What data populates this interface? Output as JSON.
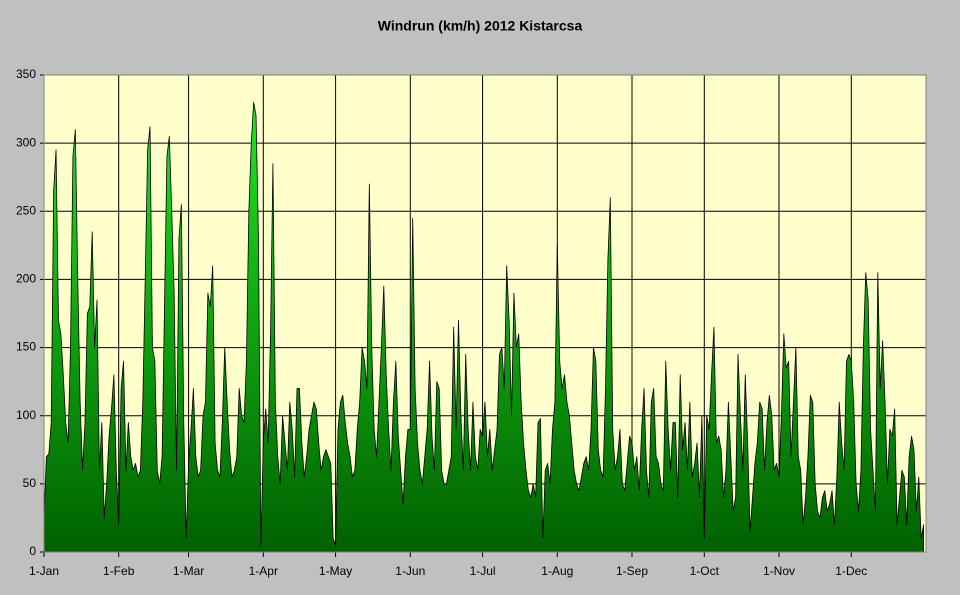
{
  "chart_data": {
    "type": "area",
    "title": "Windrun (km/h) 2012 Kistarcsa",
    "categories": [
      "1-Jan",
      null,
      null,
      null,
      null,
      null,
      null,
      null,
      null,
      null,
      null,
      null,
      null,
      null,
      null,
      null,
      null,
      null,
      null,
      null,
      null,
      null,
      null,
      null,
      null,
      null,
      null,
      null,
      null,
      null,
      null,
      "1-Feb",
      null,
      null,
      null,
      null,
      null,
      null,
      null,
      null,
      null,
      null,
      null,
      null,
      null,
      null,
      null,
      null,
      null,
      null,
      null,
      null,
      null,
      null,
      null,
      null,
      null,
      null,
      null,
      null,
      "1-Mar",
      null,
      null,
      null,
      null,
      null,
      null,
      null,
      null,
      null,
      null,
      null,
      null,
      null,
      null,
      null,
      null,
      null,
      null,
      null,
      null,
      null,
      null,
      null,
      null,
      null,
      null,
      null,
      null,
      null,
      null,
      "1-Apr",
      null,
      null,
      null,
      null,
      null,
      null,
      null,
      null,
      null,
      null,
      null,
      null,
      null,
      null,
      null,
      null,
      null,
      null,
      null,
      null,
      null,
      null,
      null,
      null,
      null,
      null,
      null,
      null,
      null,
      "1-May",
      null,
      null,
      null,
      null,
      null,
      null,
      null,
      null,
      null,
      null,
      null,
      null,
      null,
      null,
      null,
      null,
      null,
      null,
      null,
      null,
      null,
      null,
      null,
      null,
      null,
      null,
      null,
      null,
      null,
      null,
      "1-Jun",
      null,
      null,
      null,
      null,
      null,
      null,
      null,
      null,
      null,
      null,
      null,
      null,
      null,
      null,
      null,
      null,
      null,
      null,
      null,
      null,
      null,
      null,
      null,
      null,
      null,
      null,
      null,
      null,
      null,
      "1-Jul",
      null,
      null,
      null,
      null,
      null,
      null,
      null,
      null,
      null,
      null,
      null,
      null,
      null,
      null,
      null,
      null,
      null,
      null,
      null,
      null,
      null,
      null,
      null,
      null,
      null,
      null,
      null,
      null,
      null,
      null,
      "1-Aug",
      null,
      null,
      null,
      null,
      null,
      null,
      null,
      null,
      null,
      null,
      null,
      null,
      null,
      null,
      null,
      null,
      null,
      null,
      null,
      null,
      null,
      null,
      null,
      null,
      null,
      null,
      null,
      null,
      null,
      null,
      "1-Sep",
      null,
      null,
      null,
      null,
      null,
      null,
      null,
      null,
      null,
      null,
      null,
      null,
      null,
      null,
      null,
      null,
      null,
      null,
      null,
      null,
      null,
      null,
      null,
      null,
      null,
      null,
      null,
      null,
      null,
      "1-Oct",
      null,
      null,
      null,
      null,
      null,
      null,
      null,
      null,
      null,
      null,
      null,
      null,
      null,
      null,
      null,
      null,
      null,
      null,
      null,
      null,
      null,
      null,
      null,
      null,
      null,
      null,
      null,
      null,
      null,
      null,
      "1-Nov",
      null,
      null,
      null,
      null,
      null,
      null,
      null,
      null,
      null,
      null,
      null,
      null,
      null,
      null,
      null,
      null,
      null,
      null,
      null,
      null,
      null,
      null,
      null,
      null,
      null,
      null,
      null,
      null,
      null,
      "1-Dec",
      null,
      null,
      null,
      null,
      null,
      null,
      null,
      null,
      null,
      null,
      null,
      null,
      null,
      null,
      null,
      null,
      null,
      null,
      null,
      null,
      null,
      null,
      null,
      null,
      null,
      null,
      null,
      null,
      null,
      null
    ],
    "values": [
      25,
      70,
      72,
      95,
      265,
      295,
      170,
      160,
      130,
      95,
      80,
      150,
      290,
      310,
      200,
      110,
      60,
      95,
      175,
      180,
      235,
      150,
      185,
      60,
      95,
      25,
      50,
      85,
      105,
      130,
      60,
      20,
      120,
      140,
      60,
      95,
      70,
      60,
      65,
      55,
      60,
      110,
      200,
      295,
      312,
      150,
      140,
      60,
      50,
      70,
      180,
      290,
      305,
      250,
      190,
      60,
      230,
      255,
      95,
      10,
      65,
      90,
      120,
      70,
      55,
      60,
      100,
      110,
      190,
      180,
      210,
      80,
      60,
      55,
      95,
      150,
      110,
      75,
      55,
      60,
      70,
      120,
      100,
      95,
      140,
      250,
      300,
      330,
      320,
      230,
      5,
      80,
      105,
      80,
      160,
      285,
      110,
      70,
      50,
      100,
      80,
      60,
      110,
      90,
      55,
      120,
      120,
      80,
      55,
      70,
      90,
      100,
      110,
      105,
      80,
      60,
      70,
      75,
      70,
      65,
      10,
      5,
      90,
      110,
      115,
      95,
      80,
      70,
      55,
      60,
      90,
      110,
      150,
      140,
      120,
      270,
      150,
      90,
      70,
      110,
      150,
      195,
      130,
      90,
      60,
      110,
      140,
      85,
      60,
      35,
      70,
      90,
      90,
      245,
      120,
      80,
      60,
      50,
      70,
      90,
      140,
      85,
      60,
      125,
      120,
      60,
      50,
      50,
      60,
      70,
      165,
      90,
      170,
      100,
      60,
      145,
      90,
      60,
      110,
      70,
      60,
      90,
      85,
      110,
      70,
      90,
      60,
      75,
      90,
      145,
      150,
      120,
      210,
      170,
      100,
      190,
      150,
      160,
      110,
      80,
      60,
      45,
      40,
      50,
      40,
      95,
      98,
      10,
      60,
      65,
      50,
      90,
      110,
      225,
      140,
      120,
      130,
      110,
      100,
      80,
      60,
      50,
      45,
      55,
      65,
      70,
      60,
      90,
      150,
      140,
      75,
      60,
      55,
      120,
      215,
      260,
      90,
      60,
      70,
      90,
      50,
      45,
      65,
      85,
      80,
      60,
      70,
      45,
      90,
      120,
      60,
      40,
      110,
      120,
      70,
      65,
      50,
      45,
      140,
      90,
      60,
      95,
      95,
      40,
      130,
      75,
      95,
      60,
      110,
      55,
      65,
      80,
      40,
      100,
      10,
      100,
      90,
      130,
      165,
      80,
      85,
      75,
      40,
      60,
      110,
      70,
      30,
      40,
      145,
      100,
      60,
      130,
      80,
      15,
      40,
      65,
      80,
      110,
      105,
      60,
      95,
      115,
      100,
      60,
      65,
      55,
      100,
      160,
      135,
      140,
      70,
      110,
      150,
      70,
      60,
      20,
      40,
      70,
      115,
      110,
      50,
      30,
      25,
      40,
      45,
      30,
      35,
      45,
      20,
      55,
      110,
      80,
      60,
      140,
      145,
      140,
      110,
      50,
      30,
      60,
      150,
      205,
      185,
      90,
      60,
      30,
      205,
      120,
      155,
      110,
      50,
      90,
      85,
      105,
      20,
      40,
      60,
      55,
      20,
      70,
      85,
      75,
      30,
      55,
      10,
      20
    ],
    "color": "#22ee22",
    "ylim": [
      0,
      350
    ],
    "yticks": [
      0,
      50,
      100,
      150,
      200,
      250,
      300,
      350
    ],
    "grid": true
  }
}
